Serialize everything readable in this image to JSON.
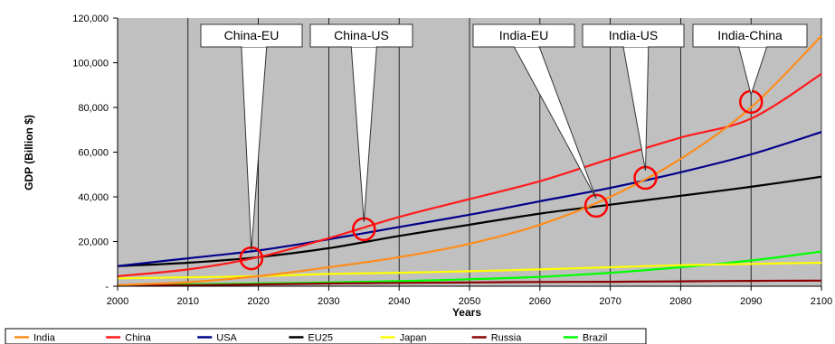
{
  "chart_data": {
    "type": "line",
    "title": "",
    "xlabel": "Years",
    "ylabel": "GDP (Billion $)",
    "xlim": [
      2000,
      2100
    ],
    "ylim": [
      0,
      120000
    ],
    "x_ticks": [
      2000,
      2010,
      2020,
      2030,
      2040,
      2050,
      2060,
      2070,
      2080,
      2090,
      2100
    ],
    "y_ticks": [
      0,
      20000,
      40000,
      60000,
      80000,
      100000,
      120000
    ],
    "y_tick_labels": [
      "-",
      "20,000",
      "40,000",
      "60,000",
      "80,000",
      "100,000",
      "120,000"
    ],
    "grid": "vertical",
    "legend_position": "bottom",
    "plot_background": "#c0c0c0",
    "x": [
      2000,
      2010,
      2020,
      2030,
      2040,
      2050,
      2060,
      2070,
      2080,
      2090,
      2100
    ],
    "series": [
      {
        "name": "India",
        "color": "#ff8c1a",
        "values": [
          500,
          1800,
          4500,
          8500,
          13000,
          19000,
          27500,
          40000,
          57000,
          80000,
          112000
        ]
      },
      {
        "name": "China",
        "color": "#ff1a1a",
        "values": [
          4500,
          7500,
          13000,
          21500,
          31000,
          39000,
          47000,
          57000,
          66500,
          75000,
          95000
        ]
      },
      {
        "name": "USA",
        "color": "#00008b",
        "values": [
          9000,
          12500,
          16000,
          21000,
          26500,
          32000,
          38000,
          44000,
          51000,
          59000,
          69000
        ]
      },
      {
        "name": "EU25",
        "color": "#000000",
        "values": [
          9000,
          10500,
          13000,
          17000,
          22500,
          27500,
          32500,
          36500,
          40500,
          44500,
          49000
        ]
      },
      {
        "name": "Japan",
        "color": "#ffff00",
        "values": [
          3500,
          4000,
          4500,
          5500,
          6000,
          6700,
          7500,
          8500,
          9400,
          10000,
          10500
        ]
      },
      {
        "name": "Russia",
        "color": "#8b0000",
        "values": [
          300,
          500,
          800,
          1200,
          1500,
          1700,
          1900,
          2000,
          2200,
          2400,
          2500
        ]
      },
      {
        "name": "Brazil",
        "color": "#00ff00",
        "values": [
          500,
          800,
          1200,
          1700,
          2300,
          3100,
          4200,
          6000,
          8500,
          11500,
          15500
        ]
      }
    ],
    "annotations": [
      {
        "label": "China-EU",
        "x": 2019,
        "y": 12500
      },
      {
        "label": "China-US",
        "x": 2035,
        "y": 25500
      },
      {
        "label": "India-EU",
        "x": 2068,
        "y": 36000
      },
      {
        "label": "India-US",
        "x": 2075,
        "y": 48500
      },
      {
        "label": "India-China",
        "x": 2090,
        "y": 82500
      }
    ]
  }
}
